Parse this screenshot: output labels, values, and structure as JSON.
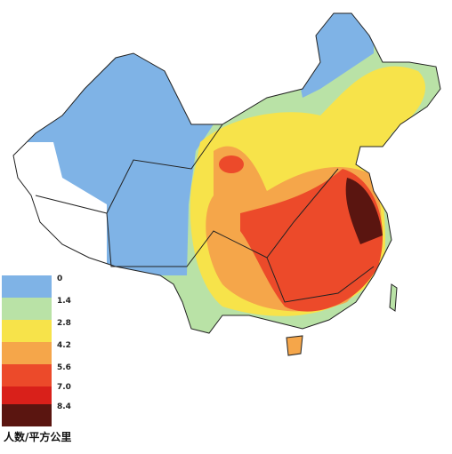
{
  "legend": {
    "items": [
      "0",
      "1.4",
      "2.8",
      "4.2",
      "5.6",
      "7.0",
      "8.4"
    ],
    "unit": "人数/平方公里"
  }
}
